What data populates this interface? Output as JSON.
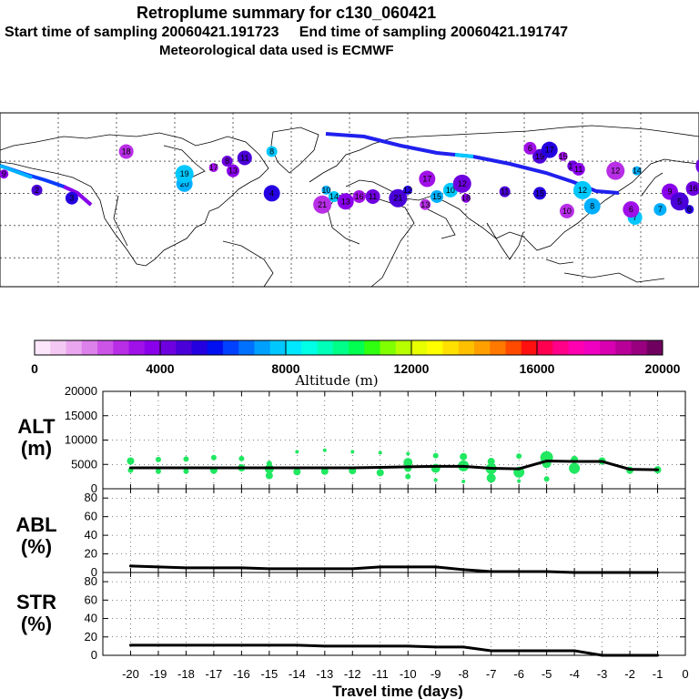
{
  "header": {
    "title": "Retroplume summary for c130_060421",
    "start_label": "Start time of sampling",
    "start_time": "20060421.191723",
    "end_label": "End time of sampling",
    "end_time": "20060421.191747",
    "met": "Meteorological data used is ECMWF"
  },
  "colorbar": {
    "label": "Altitude (m)",
    "ticks": [
      "0",
      "4000",
      "8000",
      "12000",
      "16000",
      "20000"
    ],
    "colors": [
      "#fbe6fb",
      "#f3c9f3",
      "#eaa6ee",
      "#dc80ea",
      "#cc55e8",
      "#b82ee6",
      "#a010e8",
      "#8a00ea",
      "#6e00e0",
      "#4a00d8",
      "#2400e0",
      "#0010f0",
      "#0040ff",
      "#0070ff",
      "#00a0ff",
      "#00c8ff",
      "#00e8ff",
      "#00ffe6",
      "#00ffb8",
      "#00ff88",
      "#00ff50",
      "#30ff10",
      "#80ff00",
      "#b8ff00",
      "#e8ff00",
      "#ffff00",
      "#ffe000",
      "#ffc000",
      "#ffa000",
      "#ff7800",
      "#ff4a00",
      "#ff1010",
      "#ff0050",
      "#ff0088",
      "#ff00b0",
      "#f000c0",
      "#d800b0",
      "#b80098",
      "#980080",
      "#700060"
    ]
  },
  "panels": {
    "alt": {
      "name": "ALT",
      "unit": "(m)",
      "ticks": [
        "20000",
        "15000",
        "10000",
        "5000",
        "0"
      ]
    },
    "abl": {
      "name": "ABL",
      "unit": "(%)",
      "ticks": [
        "80",
        "60",
        "40",
        "20",
        "0"
      ]
    },
    "str": {
      "name": "STR",
      "unit": "(%)",
      "ticks": [
        "80",
        "60",
        "40",
        "20",
        "0"
      ]
    },
    "xlabel": "Travel time (days)",
    "xticks": [
      "-20",
      "-19",
      "-18",
      "-17",
      "-16",
      "-15",
      "-14",
      "-13",
      "-12",
      "-11",
      "-10",
      "-9",
      "-8",
      "-7",
      "-6",
      "-5",
      "-4",
      "-3",
      "-2",
      "-1",
      "0"
    ]
  },
  "chart_data": {
    "type": "line",
    "title": "Retroplume summary for c130_060421",
    "xlabel": "Travel time (days)",
    "x": [
      -20,
      -19,
      -18,
      -17,
      -16,
      -15,
      -14,
      -13,
      -12,
      -11,
      -10,
      -9,
      -8,
      -7,
      -6,
      -5,
      -4,
      -3,
      -2,
      -1
    ],
    "series": [
      {
        "name": "ALT (m)",
        "ylim": [
          0,
          20000
        ],
        "values": [
          4300,
          4300,
          4300,
          4300,
          4300,
          4300,
          4300,
          4300,
          4300,
          4400,
          4500,
          4600,
          4600,
          4200,
          4100,
          5700,
          5600,
          5600,
          4000,
          3900
        ]
      },
      {
        "name": "ABL (%)",
        "ylim": [
          0,
          90
        ],
        "values": [
          7,
          6,
          5,
          5,
          5,
          4,
          4,
          4,
          4,
          6,
          6,
          6,
          3,
          1,
          1,
          1,
          0,
          0,
          0,
          0
        ]
      },
      {
        "name": "STR (%)",
        "ylim": [
          0,
          90
        ],
        "values": [
          11,
          11,
          11,
          11,
          11,
          11,
          11,
          10,
          10,
          10,
          10,
          9,
          9,
          5,
          5,
          5,
          5,
          0,
          0,
          0
        ]
      }
    ],
    "scatter_alt": {
      "x": [
        -20,
        -20,
        -19,
        -19,
        -18,
        -18,
        -17,
        -17,
        -16,
        -16,
        -15,
        -15,
        -15,
        -14,
        -14,
        -13,
        -13,
        -12,
        -12,
        -11,
        -11,
        -10,
        -10,
        -10,
        -10,
        -9,
        -9,
        -9,
        -8,
        -8,
        -8,
        -7,
        -7,
        -7,
        -6,
        -6,
        -6,
        -5,
        -5,
        -5,
        -4,
        -4,
        -3,
        -2,
        -1
      ],
      "y": [
        5700,
        3800,
        6000,
        3600,
        6100,
        3600,
        6400,
        3800,
        6200,
        4300,
        5200,
        4100,
        2700,
        7600,
        3500,
        7900,
        3600,
        7600,
        3700,
        7400,
        3300,
        7200,
        5400,
        4200,
        2500,
        6800,
        4200,
        1800,
        6600,
        4700,
        1500,
        5600,
        4100,
        2200,
        6700,
        3400,
        1600,
        6400,
        5200,
        2000,
        6000,
        4200,
        5700,
        3800,
        3900
      ],
      "s": [
        4,
        3,
        3,
        3,
        3,
        3,
        3,
        4,
        3,
        4,
        3,
        5,
        4,
        2,
        4,
        2,
        4,
        2,
        4,
        2,
        4,
        2,
        5,
        4,
        3,
        3,
        5,
        2,
        4,
        6,
        2,
        4,
        6,
        5,
        3,
        6,
        2,
        7,
        5,
        3,
        4,
        6,
        4,
        4,
        4
      ]
    },
    "map_labels": [
      {
        "t": "9",
        "lon": -178,
        "lat": 52
      },
      {
        "t": "2",
        "lon": -161,
        "lat": 42
      },
      {
        "t": "3",
        "lon": -143,
        "lat": 37
      },
      {
        "t": "18",
        "lon": -115,
        "lat": 66
      },
      {
        "t": "20",
        "lon": -85,
        "lat": 46
      },
      {
        "t": "19",
        "lon": -85,
        "lat": 52
      },
      {
        "t": "17",
        "lon": -70,
        "lat": 56
      },
      {
        "t": "8",
        "lon": -63,
        "lat": 60
      },
      {
        "t": "13",
        "lon": -60,
        "lat": 54
      },
      {
        "t": "11",
        "lon": -54,
        "lat": 62
      },
      {
        "t": "4",
        "lon": -40,
        "lat": 40
      },
      {
        "t": "21",
        "lon": -14,
        "lat": 33
      },
      {
        "t": "10",
        "lon": -12,
        "lat": 42
      },
      {
        "t": "14",
        "lon": -8,
        "lat": 38
      },
      {
        "t": "16",
        "lon": 5,
        "lat": 38
      },
      {
        "t": "11",
        "lon": 12,
        "lat": 38
      },
      {
        "t": "13",
        "lon": -2,
        "lat": 35
      },
      {
        "t": "21",
        "lon": 25,
        "lat": 37
      },
      {
        "t": "12",
        "lon": 30,
        "lat": 42
      },
      {
        "t": "13",
        "lon": 39,
        "lat": 33
      },
      {
        "t": "15",
        "lon": 45,
        "lat": 38
      },
      {
        "t": "10",
        "lon": 52,
        "lat": 42
      },
      {
        "t": "17",
        "lon": 40,
        "lat": 49
      },
      {
        "t": "12",
        "lon": 58,
        "lat": 46
      },
      {
        "t": "18",
        "lon": 60,
        "lat": 37
      },
      {
        "t": "11",
        "lon": 80,
        "lat": 41
      },
      {
        "t": "15",
        "lon": 98,
        "lat": 40
      },
      {
        "t": "10",
        "lon": 112,
        "lat": 29
      },
      {
        "t": "8",
        "lon": 125,
        "lat": 32
      },
      {
        "t": "12",
        "lon": 120,
        "lat": 42
      },
      {
        "t": "15",
        "lon": 110,
        "lat": 63
      },
      {
        "t": "14",
        "lon": 115,
        "lat": 57
      },
      {
        "t": "11",
        "lon": 118,
        "lat": 55
      },
      {
        "t": "19",
        "lon": 98,
        "lat": 63
      },
      {
        "t": "17",
        "lon": 103,
        "lat": 67
      },
      {
        "t": "12",
        "lon": 137,
        "lat": 54
      },
      {
        "t": "14",
        "lon": 148,
        "lat": 54
      },
      {
        "t": "8",
        "lon": -40,
        "lat": 66
      },
      {
        "t": "6",
        "lon": 93,
        "lat": 68
      },
      {
        "t": "16",
        "lon": 177,
        "lat": 43
      },
      {
        "t": "9",
        "lon": 165,
        "lat": 41
      },
      {
        "t": "5",
        "lon": 170,
        "lat": 35
      },
      {
        "t": "6",
        "lon": 175,
        "lat": 30
      },
      {
        "t": "8",
        "lon": 185,
        "lat": 26
      },
      {
        "t": "7",
        "lon": 160,
        "lat": 30
      },
      {
        "t": "7",
        "lon": 147,
        "lat": 25
      },
      {
        "t": "6",
        "lon": 145,
        "lat": 30
      },
      {
        "t": "3",
        "lon": 183,
        "lat": 57
      }
    ]
  }
}
